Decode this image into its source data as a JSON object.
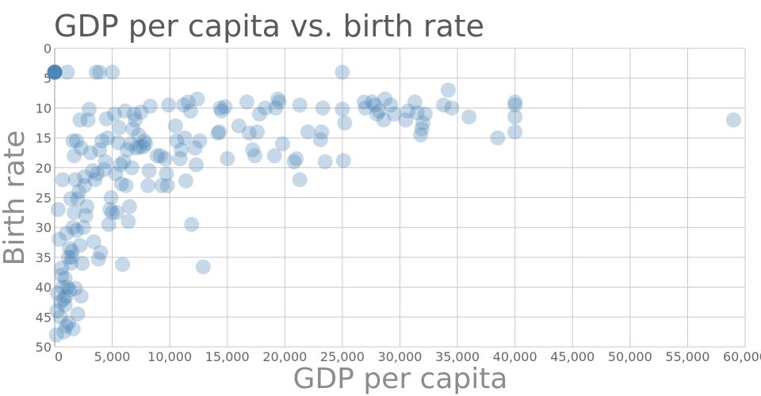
{
  "chart_data": {
    "type": "scatter",
    "title": "GDP per capita vs. birth rate",
    "xlabel": "GDP per capita",
    "ylabel": "Birth rate",
    "xlim": [
      0,
      60000
    ],
    "ylim": [
      0,
      50
    ],
    "y_inverted": true,
    "grid": true,
    "xticks": [
      "0",
      "5,000",
      "10,000",
      "15,000",
      "20,000",
      "25,000",
      "30,000",
      "35,000",
      "40,000",
      "45,000",
      "50,000",
      "55,000",
      "60,000"
    ],
    "yticks": [
      "0",
      "5",
      "10",
      "15",
      "20",
      "25",
      "30",
      "35",
      "40",
      "45",
      "50"
    ],
    "color": "#4682b4",
    "points": [
      [
        0,
        4
      ],
      [
        0,
        4
      ],
      [
        0,
        4
      ],
      [
        0,
        4
      ],
      [
        0,
        4
      ],
      [
        0,
        4
      ],
      [
        0,
        4
      ],
      [
        0,
        4
      ],
      [
        1100,
        4
      ],
      [
        3600,
        4
      ],
      [
        3900,
        4
      ],
      [
        5000,
        4
      ],
      [
        25000,
        4
      ],
      [
        59000,
        12
      ],
      [
        38500,
        15
      ],
      [
        40000,
        9
      ],
      [
        40000,
        9.5
      ],
      [
        40000,
        11.5
      ],
      [
        40000,
        14
      ],
      [
        36000,
        11.5
      ],
      [
        34500,
        10
      ],
      [
        34200,
        7
      ],
      [
        33800,
        9.5
      ],
      [
        32200,
        11
      ],
      [
        32000,
        12.5
      ],
      [
        31900,
        13.5
      ],
      [
        31800,
        14.5
      ],
      [
        31300,
        9
      ],
      [
        31500,
        10.8
      ],
      [
        30700,
        10.5
      ],
      [
        30500,
        12
      ],
      [
        29500,
        11
      ],
      [
        29200,
        9.5
      ],
      [
        28700,
        8.5
      ],
      [
        28600,
        12
      ],
      [
        28200,
        10.5
      ],
      [
        28000,
        11
      ],
      [
        27800,
        9.5
      ],
      [
        27600,
        9
      ],
      [
        26900,
        9
      ],
      [
        27000,
        10
      ],
      [
        25200,
        12.5
      ],
      [
        25000,
        10.2
      ],
      [
        25100,
        18.8
      ],
      [
        23500,
        19
      ],
      [
        23300,
        10
      ],
      [
        23200,
        14
      ],
      [
        23100,
        15.3
      ],
      [
        22000,
        14
      ],
      [
        21300,
        9.5
      ],
      [
        21300,
        22
      ],
      [
        21000,
        18.5
      ],
      [
        20800,
        19
      ],
      [
        19800,
        16
      ],
      [
        19400,
        8.5
      ],
      [
        19500,
        9
      ],
      [
        19200,
        10
      ],
      [
        19100,
        18
      ],
      [
        18300,
        10
      ],
      [
        17800,
        11
      ],
      [
        17600,
        14
      ],
      [
        17400,
        18
      ],
      [
        17200,
        17
      ],
      [
        16900,
        14.2
      ],
      [
        16700,
        9
      ],
      [
        16000,
        13
      ],
      [
        15000,
        18.5
      ],
      [
        14800,
        9.8
      ],
      [
        14500,
        10.5
      ],
      [
        14400,
        10
      ],
      [
        14300,
        14
      ],
      [
        14200,
        14.2
      ],
      [
        12900,
        36.6
      ],
      [
        12600,
        15.5
      ],
      [
        12400,
        8.5
      ],
      [
        12300,
        19.5
      ],
      [
        12200,
        16.7
      ],
      [
        11900,
        29.5
      ],
      [
        11800,
        10.5
      ],
      [
        11600,
        9
      ],
      [
        11400,
        22.2
      ],
      [
        11300,
        15
      ],
      [
        11200,
        9.5
      ],
      [
        11000,
        17
      ],
      [
        10900,
        18.5
      ],
      [
        10600,
        15.5
      ],
      [
        10500,
        13
      ],
      [
        9900,
        9.5
      ],
      [
        9800,
        23
      ],
      [
        9700,
        21
      ],
      [
        9600,
        18.5
      ],
      [
        9300,
        23
      ],
      [
        9200,
        18
      ],
      [
        8900,
        18
      ],
      [
        8300,
        9.7
      ],
      [
        8200,
        20.5
      ],
      [
        8100,
        23
      ],
      [
        7900,
        16
      ],
      [
        7800,
        15.5
      ],
      [
        7700,
        16.5
      ],
      [
        7500,
        10.7
      ],
      [
        7400,
        16.5
      ],
      [
        7300,
        14.5
      ],
      [
        7100,
        16.7
      ],
      [
        7000,
        12
      ],
      [
        6900,
        11
      ],
      [
        6800,
        13.5
      ],
      [
        6700,
        20
      ],
      [
        6600,
        16
      ],
      [
        6500,
        26.5
      ],
      [
        6400,
        29
      ],
      [
        6300,
        17
      ],
      [
        6200,
        23
      ],
      [
        6100,
        10.5
      ],
      [
        6000,
        19
      ],
      [
        5900,
        36.2
      ],
      [
        5800,
        22.7
      ],
      [
        5700,
        19.5
      ],
      [
        5600,
        13.3
      ],
      [
        5500,
        15.8
      ],
      [
        5400,
        27.5
      ],
      [
        5300,
        21
      ],
      [
        5200,
        11
      ],
      [
        5000,
        27.5
      ],
      [
        4900,
        25
      ],
      [
        4800,
        27
      ],
      [
        4700,
        29.5
      ],
      [
        4600,
        15
      ],
      [
        4500,
        11.8
      ],
      [
        4400,
        19
      ],
      [
        4300,
        20.3
      ],
      [
        4100,
        15.5
      ],
      [
        4000,
        34.2
      ],
      [
        3900,
        17
      ],
      [
        3800,
        35.3
      ],
      [
        3700,
        21
      ],
      [
        3500,
        22
      ],
      [
        3400,
        32.4
      ],
      [
        3300,
        20.5
      ],
      [
        3100,
        17.5
      ],
      [
        3000,
        10.2
      ],
      [
        2900,
        12
      ],
      [
        2800,
        26.5
      ],
      [
        2700,
        28
      ],
      [
        2600,
        23
      ],
      [
        2500,
        30
      ],
      [
        2400,
        36
      ],
      [
        2300,
        41.5
      ],
      [
        2200,
        12
      ],
      [
        2100,
        24
      ],
      [
        2000,
        25.2
      ],
      [
        1900,
        30.5
      ],
      [
        1800,
        22
      ],
      [
        1700,
        27.5
      ],
      [
        1600,
        15.5
      ],
      [
        1500,
        35
      ],
      [
        1400,
        36
      ],
      [
        1300,
        33.5
      ],
      [
        1200,
        46
      ],
      [
        1100,
        40
      ],
      [
        1000,
        41.5
      ],
      [
        900,
        43
      ],
      [
        800,
        47.5
      ],
      [
        700,
        22
      ],
      [
        600,
        38
      ],
      [
        500,
        45
      ],
      [
        400,
        32
      ],
      [
        300,
        27
      ],
      [
        250,
        41
      ],
      [
        200,
        44
      ],
      [
        150,
        48
      ],
      [
        1700,
        18
      ],
      [
        1900,
        15.5
      ],
      [
        2300,
        16.7
      ],
      [
        2600,
        21.5
      ],
      [
        1800,
        40.2
      ],
      [
        1600,
        30
      ],
      [
        2200,
        33
      ],
      [
        1400,
        25.2
      ],
      [
        1000,
        31
      ],
      [
        900,
        38.5
      ],
      [
        700,
        40
      ],
      [
        600,
        36.8
      ],
      [
        1200,
        35
      ],
      [
        1500,
        34
      ],
      [
        800,
        42
      ],
      [
        1300,
        40.5
      ],
      [
        2000,
        44.5
      ],
      [
        1600,
        47
      ],
      [
        500,
        42.5
      ],
      [
        1000,
        46.5
      ]
    ]
  }
}
